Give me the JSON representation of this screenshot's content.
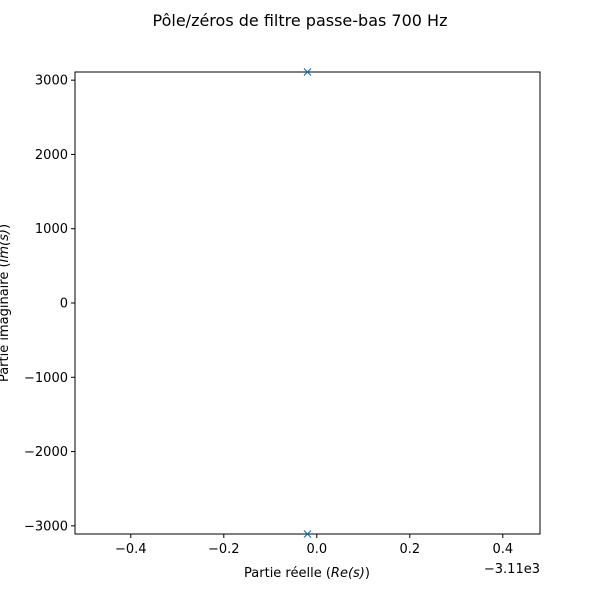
{
  "chart_data": {
    "type": "scatter",
    "title": "Pôle/zéros de filtre passe-bas 700 Hz",
    "xlabel": {
      "prefix": "Partie réelle (",
      "math": "Re(s)",
      "suffix": ")"
    },
    "ylabel": {
      "prefix": "Partie imaginaire (",
      "math": "Im(s)",
      "suffix": ")"
    },
    "x_offset_label": "−3.11e3",
    "x_offset": -3110,
    "xlim": [
      -0.52,
      0.48
    ],
    "ylim": [
      -3110,
      3110
    ],
    "xticks": [
      {
        "value": -0.4,
        "label": "−0.4"
      },
      {
        "value": -0.2,
        "label": "−0.2"
      },
      {
        "value": 0.0,
        "label": "0.0"
      },
      {
        "value": 0.2,
        "label": "0.2"
      },
      {
        "value": 0.4,
        "label": "0.4"
      }
    ],
    "yticks": [
      {
        "value": 3000,
        "label": "3000"
      },
      {
        "value": 2000,
        "label": "2000"
      },
      {
        "value": 1000,
        "label": "1000"
      },
      {
        "value": 0,
        "label": "0"
      },
      {
        "value": -1000,
        "label": "−1000"
      },
      {
        "value": -2000,
        "label": "−2000"
      },
      {
        "value": -3000,
        "label": "−3000"
      }
    ],
    "series": [
      {
        "marker": "x",
        "color": "#1f77b4",
        "points": [
          {
            "x": -0.02,
            "y": 3110
          },
          {
            "x": -0.02,
            "y": -3110
          }
        ]
      }
    ],
    "grid": false
  }
}
